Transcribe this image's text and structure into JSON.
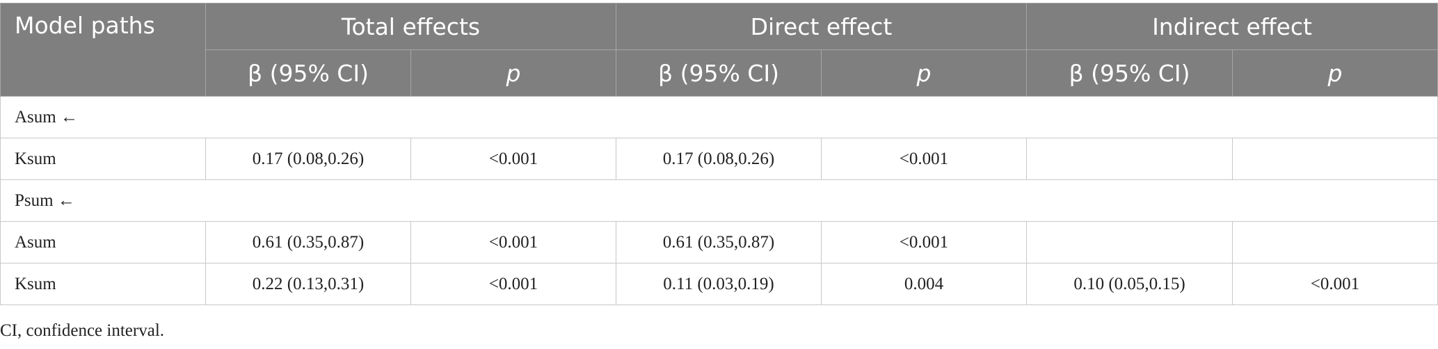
{
  "header": {
    "model_paths": "Model paths",
    "total_effects": "Total effects",
    "direct_effect": "Direct effect",
    "indirect_effect": "Indirect effect",
    "beta_ci": "β (95% CI)",
    "p": "p"
  },
  "groups": [
    {
      "label": "Asum ←",
      "rows": [
        {
          "path": "Ksum",
          "total_beta": "0.17 (0.08,0.26)",
          "total_p": "<0.001",
          "direct_beta": "0.17 (0.08,0.26)",
          "direct_p": "<0.001",
          "indirect_beta": "",
          "indirect_p": ""
        }
      ]
    },
    {
      "label": "Psum ←",
      "rows": [
        {
          "path": "Asum",
          "total_beta": "0.61 (0.35,0.87)",
          "total_p": "<0.001",
          "direct_beta": "0.61 (0.35,0.87)",
          "direct_p": "<0.001",
          "indirect_beta": "",
          "indirect_p": ""
        },
        {
          "path": "Ksum",
          "total_beta": "0.22 (0.13,0.31)",
          "total_p": "<0.001",
          "direct_beta": "0.11 (0.03,0.19)",
          "direct_p": "0.004",
          "indirect_beta": "0.10 (0.05,0.15)",
          "indirect_p": "<0.001"
        }
      ]
    }
  ],
  "footnote": "CI, confidence interval."
}
